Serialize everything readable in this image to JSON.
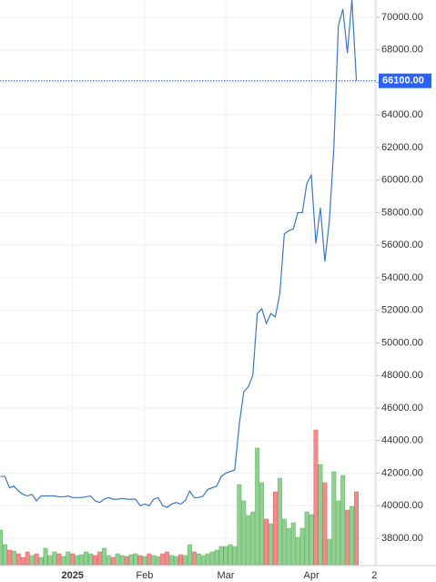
{
  "chart_data": {
    "type": "line",
    "color": "#3a78c9",
    "categories": [
      null,
      null,
      null,
      null,
      null,
      null,
      null,
      null,
      null,
      null,
      null,
      null,
      null,
      null,
      null,
      null,
      "2025",
      null,
      null,
      null,
      null,
      null,
      null,
      null,
      null,
      null,
      null,
      null,
      null,
      null,
      null,
      null,
      "Feb",
      null,
      null,
      null,
      null,
      null,
      null,
      null,
      null,
      null,
      null,
      null,
      null,
      null,
      null,
      null,
      null,
      null,
      "Mar",
      null,
      null,
      null,
      null,
      null,
      null,
      null,
      null,
      null,
      null,
      null,
      null,
      null,
      null,
      null,
      null,
      null,
      null,
      "Apr",
      null,
      null,
      null,
      null,
      null,
      null,
      null,
      null,
      null,
      null,
      null,
      null,
      null,
      "2"
    ],
    "values": [
      41800,
      41800,
      41100,
      41200,
      40900,
      40700,
      40600,
      40700,
      40300,
      40600,
      40600,
      40600,
      40600,
      40550,
      40550,
      40600,
      40500,
      40500,
      40500,
      40550,
      40600,
      40300,
      40200,
      40400,
      40500,
      40400,
      40400,
      40450,
      40400,
      40400,
      40400,
      40000,
      40100,
      40000,
      40400,
      40500,
      40000,
      39900,
      40100,
      40200,
      40100,
      40300,
      40900,
      40500,
      40500,
      40600,
      41000,
      41100,
      41200,
      41800,
      42000,
      42100,
      42200,
      45000,
      47000,
      47300,
      48000,
      51800,
      52100,
      51200,
      51800,
      51600,
      53000,
      56700,
      56900,
      57000,
      58000,
      58000,
      59800,
      60300,
      56100,
      58300,
      55000,
      57500,
      62000,
      69500,
      70500,
      67800,
      71100,
      66100,
      null,
      null,
      null,
      null
    ],
    "volume": [
      38,
      22,
      16,
      15,
      12,
      8,
      14,
      10,
      12,
      8,
      18,
      10,
      14,
      12,
      9,
      14,
      12,
      10,
      11,
      14,
      12,
      10,
      14,
      18,
      10,
      8,
      12,
      10,
      9,
      11,
      12,
      10,
      9,
      12,
      10,
      9,
      12,
      14,
      10,
      9,
      11,
      10,
      22,
      14,
      12,
      10,
      12,
      14,
      16,
      20,
      20,
      22,
      20,
      88,
      70,
      54,
      58,
      128,
      90,
      50,
      45,
      80,
      95,
      50,
      40,
      46,
      30,
      40,
      58,
      55,
      148,
      110,
      90,
      28,
      102,
      70,
      98,
      60,
      64,
      80,
      null,
      null,
      null,
      null
    ],
    "vlim": [
      0,
      160
    ],
    "up_color": "#90d090",
    "down_color": "#f08c8c",
    "ylim": [
      38000,
      70000
    ],
    "yticks": [
      {
        "value": 38000,
        "label": "38000.00"
      },
      {
        "value": 40000,
        "label": "40000.00"
      },
      {
        "value": 42000,
        "label": "42000.00"
      },
      {
        "value": 44000,
        "label": "44000.00"
      },
      {
        "value": 46000,
        "label": "46000.00"
      },
      {
        "value": 48000,
        "label": "48000.00"
      },
      {
        "value": 50000,
        "label": "50000.00"
      },
      {
        "value": 52000,
        "label": "52000.00"
      },
      {
        "value": 54000,
        "label": "54000.00"
      },
      {
        "value": 56000,
        "label": "56000.00"
      },
      {
        "value": 58000,
        "label": "58000.00"
      },
      {
        "value": 60000,
        "label": "60000.00"
      },
      {
        "value": 62000,
        "label": "62000.00"
      },
      {
        "value": 64000,
        "label": "64000.00"
      },
      {
        "value": 66000,
        "label": "66000.00"
      },
      {
        "value": 68000,
        "label": "68000.00"
      },
      {
        "value": 70000,
        "label": "70000.00"
      }
    ],
    "last_price": {
      "value": 66100,
      "label": "66100.00"
    },
    "grid": true
  }
}
